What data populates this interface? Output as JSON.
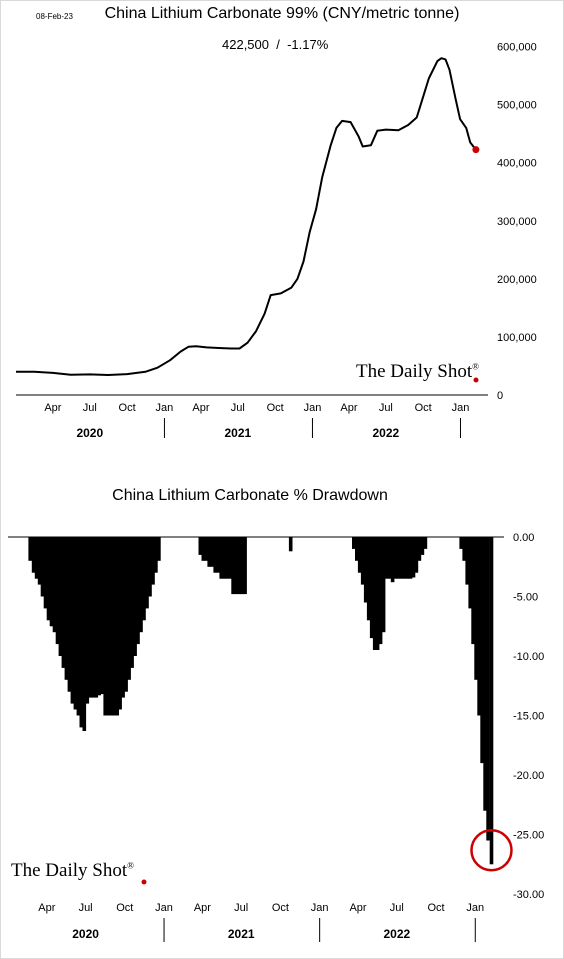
{
  "date_stamp": "08-Feb-23",
  "logo": {
    "text": "The Daily Shot",
    "mark": "®"
  },
  "colors": {
    "line": "#000000",
    "bars": "#000000",
    "accent": "#cc0000",
    "grid": "#dddddd"
  },
  "chart_data": [
    {
      "type": "line",
      "title": "China Lithium Carbonate 99% (CNY/metric tonne)",
      "stat": {
        "value": "422,500",
        "sep": "/",
        "change": "-1.17%"
      },
      "ylim": [
        0,
        620000
      ],
      "yticks": [
        0,
        100000,
        200000,
        300000,
        400000,
        500000,
        600000
      ],
      "ytick_labels": [
        "0",
        "100,000",
        "200,000",
        "300,000",
        "400,000",
        "500,000",
        "600,000"
      ],
      "month_labels": [
        {
          "date": "2020-04-01",
          "label": "Apr"
        },
        {
          "date": "2020-07-01",
          "label": "Jul"
        },
        {
          "date": "2020-10-01",
          "label": "Oct"
        },
        {
          "date": "2021-01-01",
          "label": "Jan"
        },
        {
          "date": "2021-04-01",
          "label": "Apr"
        },
        {
          "date": "2021-07-01",
          "label": "Jul"
        },
        {
          "date": "2021-10-01",
          "label": "Oct"
        },
        {
          "date": "2022-01-01",
          "label": "Jan"
        },
        {
          "date": "2022-04-01",
          "label": "Apr"
        },
        {
          "date": "2022-07-01",
          "label": "Jul"
        },
        {
          "date": "2022-10-01",
          "label": "Oct"
        },
        {
          "date": "2023-01-01",
          "label": "Jan"
        }
      ],
      "years": [
        {
          "label": "2020",
          "center": "2020-07-01"
        },
        {
          "label": "2021",
          "center": "2021-07-01"
        },
        {
          "label": "2022",
          "center": "2022-07-01"
        }
      ],
      "year_dividers": [
        "2021-01-01",
        "2022-01-01",
        "2023-01-01"
      ],
      "series": [
        {
          "points": [
            [
              "2020-01-01",
              40000
            ],
            [
              "2020-02-15",
              40000
            ],
            [
              "2020-04-01",
              38000
            ],
            [
              "2020-05-15",
              35000
            ],
            [
              "2020-07-01",
              35500
            ],
            [
              "2020-08-15",
              34500
            ],
            [
              "2020-10-01",
              36000
            ],
            [
              "2020-11-15",
              40000
            ],
            [
              "2020-12-15",
              47000
            ],
            [
              "2021-01-15",
              60000
            ],
            [
              "2021-02-10",
              75000
            ],
            [
              "2021-03-01",
              83000
            ],
            [
              "2021-03-20",
              84000
            ],
            [
              "2021-04-15",
              82000
            ],
            [
              "2021-05-15",
              81000
            ],
            [
              "2021-06-15",
              80000
            ],
            [
              "2021-07-05",
              80000
            ],
            [
              "2021-07-25",
              90000
            ],
            [
              "2021-08-15",
              110000
            ],
            [
              "2021-09-05",
              140000
            ],
            [
              "2021-09-20",
              172000
            ],
            [
              "2021-10-15",
              175000
            ],
            [
              "2021-11-10",
              185000
            ],
            [
              "2021-11-25",
              200000
            ],
            [
              "2021-12-10",
              230000
            ],
            [
              "2021-12-25",
              280000
            ],
            [
              "2022-01-10",
              320000
            ],
            [
              "2022-01-25",
              375000
            ],
            [
              "2022-02-15",
              430000
            ],
            [
              "2022-03-01",
              460000
            ],
            [
              "2022-03-15",
              472000
            ],
            [
              "2022-04-05",
              470000
            ],
            [
              "2022-04-25",
              445000
            ],
            [
              "2022-05-05",
              428000
            ],
            [
              "2022-05-25",
              430000
            ],
            [
              "2022-06-10",
              455000
            ],
            [
              "2022-07-01",
              457000
            ],
            [
              "2022-08-01",
              456000
            ],
            [
              "2022-08-25",
              465000
            ],
            [
              "2022-09-15",
              478000
            ],
            [
              "2022-09-25",
              500000
            ],
            [
              "2022-10-15",
              545000
            ],
            [
              "2022-11-05",
              575000
            ],
            [
              "2022-11-15",
              580000
            ],
            [
              "2022-11-25",
              578000
            ],
            [
              "2022-12-05",
              560000
            ],
            [
              "2022-12-20",
              510000
            ],
            [
              "2022-12-31",
              475000
            ],
            [
              "2023-01-15",
              460000
            ],
            [
              "2023-01-25",
              435000
            ],
            [
              "2023-02-08",
              422500
            ]
          ]
        }
      ]
    },
    {
      "type": "bar",
      "title": "China Lithium Carbonate % Drawdown",
      "ylim": [
        -30,
        0
      ],
      "yticks": [
        0,
        -5,
        -10,
        -15,
        -20,
        -25,
        -30
      ],
      "ytick_labels": [
        "0.00",
        "-5.00",
        "-10.00",
        "-15.00",
        "-20.00",
        "-25.00",
        "-30.00"
      ],
      "month_labels": [
        {
          "date": "2020-04-01",
          "label": "Apr"
        },
        {
          "date": "2020-07-01",
          "label": "Jul"
        },
        {
          "date": "2020-10-01",
          "label": "Oct"
        },
        {
          "date": "2021-01-01",
          "label": "Jan"
        },
        {
          "date": "2021-04-01",
          "label": "Apr"
        },
        {
          "date": "2021-07-01",
          "label": "Jul"
        },
        {
          "date": "2021-10-01",
          "label": "Oct"
        },
        {
          "date": "2022-01-01",
          "label": "Jan"
        },
        {
          "date": "2022-04-01",
          "label": "Apr"
        },
        {
          "date": "2022-07-01",
          "label": "Jul"
        },
        {
          "date": "2022-10-01",
          "label": "Oct"
        },
        {
          "date": "2023-01-01",
          "label": "Jan"
        }
      ],
      "years": [
        {
          "label": "2020",
          "center": "2020-07-01"
        },
        {
          "label": "2021",
          "center": "2021-07-01"
        },
        {
          "label": "2022",
          "center": "2022-07-01"
        }
      ],
      "year_dividers": [
        "2021-01-01",
        "2022-01-01",
        "2023-01-01"
      ],
      "highlight": {
        "date": "2023-02-08",
        "value": -27.5
      },
      "series": [
        {
          "points": [
            [
              "2020-02-15",
              0
            ],
            [
              "2020-02-22",
              -2
            ],
            [
              "2020-03-01",
              -3
            ],
            [
              "2020-03-08",
              -3.5
            ],
            [
              "2020-03-15",
              -4
            ],
            [
              "2020-03-22",
              -5
            ],
            [
              "2020-03-29",
              -6
            ],
            [
              "2020-04-05",
              -7
            ],
            [
              "2020-04-12",
              -7.5
            ],
            [
              "2020-04-19",
              -8
            ],
            [
              "2020-04-26",
              -9
            ],
            [
              "2020-05-03",
              -10
            ],
            [
              "2020-05-10",
              -11
            ],
            [
              "2020-05-17",
              -12
            ],
            [
              "2020-05-24",
              -13
            ],
            [
              "2020-05-31",
              -14
            ],
            [
              "2020-06-07",
              -14.5
            ],
            [
              "2020-06-14",
              -15
            ],
            [
              "2020-06-21",
              -16
            ],
            [
              "2020-06-28",
              -16.3
            ],
            [
              "2020-07-05",
              -14
            ],
            [
              "2020-07-12",
              -13.5
            ],
            [
              "2020-07-19",
              -13.5
            ],
            [
              "2020-07-26",
              -13.5
            ],
            [
              "2020-08-02",
              -13.3
            ],
            [
              "2020-08-09",
              -13.2
            ],
            [
              "2020-08-16",
              -15
            ],
            [
              "2020-08-23",
              -15
            ],
            [
              "2020-08-30",
              -15
            ],
            [
              "2020-09-06",
              -15
            ],
            [
              "2020-09-13",
              -15
            ],
            [
              "2020-09-20",
              -14.5
            ],
            [
              "2020-09-27",
              -13.5
            ],
            [
              "2020-10-04",
              -13
            ],
            [
              "2020-10-11",
              -12
            ],
            [
              "2020-10-18",
              -11
            ],
            [
              "2020-10-25",
              -10
            ],
            [
              "2020-11-01",
              -9
            ],
            [
              "2020-11-08",
              -8
            ],
            [
              "2020-11-15",
              -7
            ],
            [
              "2020-11-22",
              -6
            ],
            [
              "2020-11-29",
              -5
            ],
            [
              "2020-12-06",
              -4
            ],
            [
              "2020-12-13",
              -3
            ],
            [
              "2020-12-20",
              -2
            ],
            [
              "2020-12-27",
              0
            ],
            [
              "2021-03-20",
              0
            ],
            [
              "2021-03-27",
              -1.5
            ],
            [
              "2021-04-03",
              -2
            ],
            [
              "2021-04-10",
              -2
            ],
            [
              "2021-04-17",
              -2.5
            ],
            [
              "2021-04-24",
              -2.5
            ],
            [
              "2021-05-01",
              -3
            ],
            [
              "2021-05-08",
              -3
            ],
            [
              "2021-05-15",
              -3.5
            ],
            [
              "2021-05-22",
              -3.5
            ],
            [
              "2021-05-29",
              -3.5
            ],
            [
              "2021-06-05",
              -3.5
            ],
            [
              "2021-06-12",
              -4.8
            ],
            [
              "2021-06-19",
              -4.8
            ],
            [
              "2021-06-26",
              -4.8
            ],
            [
              "2021-07-03",
              -4.8
            ],
            [
              "2021-07-10",
              -4.8
            ],
            [
              "2021-07-17",
              0
            ],
            [
              "2021-10-25",
              -1.2
            ],
            [
              "2021-11-01",
              0
            ],
            [
              "2022-03-15",
              0
            ],
            [
              "2022-03-22",
              -1
            ],
            [
              "2022-03-29",
              -2
            ],
            [
              "2022-04-05",
              -3
            ],
            [
              "2022-04-12",
              -4
            ],
            [
              "2022-04-19",
              -5.5
            ],
            [
              "2022-04-26",
              -7
            ],
            [
              "2022-05-03",
              -8.5
            ],
            [
              "2022-05-10",
              -9.5
            ],
            [
              "2022-05-17",
              -9.5
            ],
            [
              "2022-05-24",
              -9
            ],
            [
              "2022-05-31",
              -8
            ],
            [
              "2022-06-07",
              -3.5
            ],
            [
              "2022-06-14",
              -3.5
            ],
            [
              "2022-06-21",
              -3.8
            ],
            [
              "2022-06-28",
              -3.5
            ],
            [
              "2022-07-05",
              -3.5
            ],
            [
              "2022-07-12",
              -3.5
            ],
            [
              "2022-07-19",
              -3.5
            ],
            [
              "2022-07-26",
              -3.5
            ],
            [
              "2022-08-02",
              -3.5
            ],
            [
              "2022-08-09",
              -3.4
            ],
            [
              "2022-08-16",
              -3
            ],
            [
              "2022-08-23",
              -2
            ],
            [
              "2022-08-30",
              -1.5
            ],
            [
              "2022-09-06",
              -1
            ],
            [
              "2022-09-13",
              0
            ],
            [
              "2022-11-22",
              0
            ],
            [
              "2022-11-29",
              -1
            ],
            [
              "2022-12-06",
              -2
            ],
            [
              "2022-12-13",
              -4
            ],
            [
              "2022-12-20",
              -6
            ],
            [
              "2022-12-27",
              -9
            ],
            [
              "2023-01-03",
              -12
            ],
            [
              "2023-01-10",
              -15
            ],
            [
              "2023-01-17",
              -19
            ],
            [
              "2023-01-24",
              -23
            ],
            [
              "2023-01-31",
              -25.5
            ],
            [
              "2023-02-08",
              -27.5
            ]
          ]
        }
      ]
    }
  ]
}
